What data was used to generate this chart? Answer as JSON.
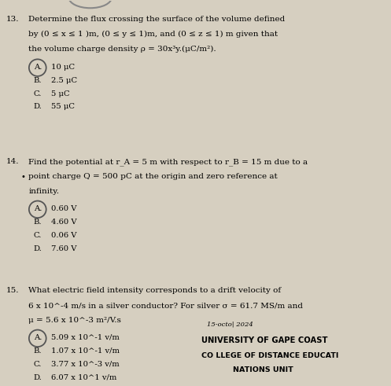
{
  "background_color": "#d6cfc0",
  "questions": [
    {
      "number": "13.",
      "text_lines": [
        "Determine the flux crossing the surface of the volume defined",
        "by (0 ≤ x ≤ 1 )m, (0 ≤ y ≤ 1)m, and (0 ≤ z ≤ 1) m given that",
        "the volume charge density ρ = 30x³y.(μC/m²)."
      ],
      "options": [
        {
          "label": "A.",
          "text": "10 μC",
          "correct": true
        },
        {
          "label": "B.",
          "text": "2.5 μC",
          "correct": false
        },
        {
          "label": "C.",
          "text": "5 μC",
          "correct": false
        },
        {
          "label": "D.",
          "text": "55 μC",
          "correct": false
        }
      ]
    },
    {
      "number": "14.",
      "text_lines": [
        "Find the potential at r_A = 5 m with respect to r_B = 15 m due to a",
        "point charge Q = 500 pC at the origin and zero reference at",
        "infinity."
      ],
      "options": [
        {
          "label": "A.",
          "text": "0.60 V",
          "correct": true
        },
        {
          "label": "B.",
          "text": "4.60 V",
          "correct": false
        },
        {
          "label": "C.",
          "text": "0.06 V",
          "correct": false
        },
        {
          "label": "D.",
          "text": "7.60 V",
          "correct": false
        }
      ]
    },
    {
      "number": "15.",
      "text_lines": [
        "What electric field intensity corresponds to a drift velocity of",
        "6 x 10^-4 m/s in a silver conductor? For silver σ = 61.7 MS/m and",
        "μ = 5.6 x 10^-3 m²/V.s"
      ],
      "options": [
        {
          "label": "A.",
          "text": "5.09 x 10^-1 v/m",
          "correct": true
        },
        {
          "label": "B.",
          "text": "1.07 x 10^-1 v/m",
          "correct": false
        },
        {
          "label": "C.",
          "text": "3.77 x 10^-3 v/m",
          "correct": false
        },
        {
          "label": "D.",
          "text": "6.07 x 10^1 v/m",
          "correct": false
        }
      ]
    }
  ],
  "footer_lines": [
    "UNIVERSITY OF GAPE COAST",
    "CO LLEGE OF DISTANCE EDUCATI",
    "NATIONS UNIT"
  ],
  "footer_stamp": "15-octo| 2024"
}
